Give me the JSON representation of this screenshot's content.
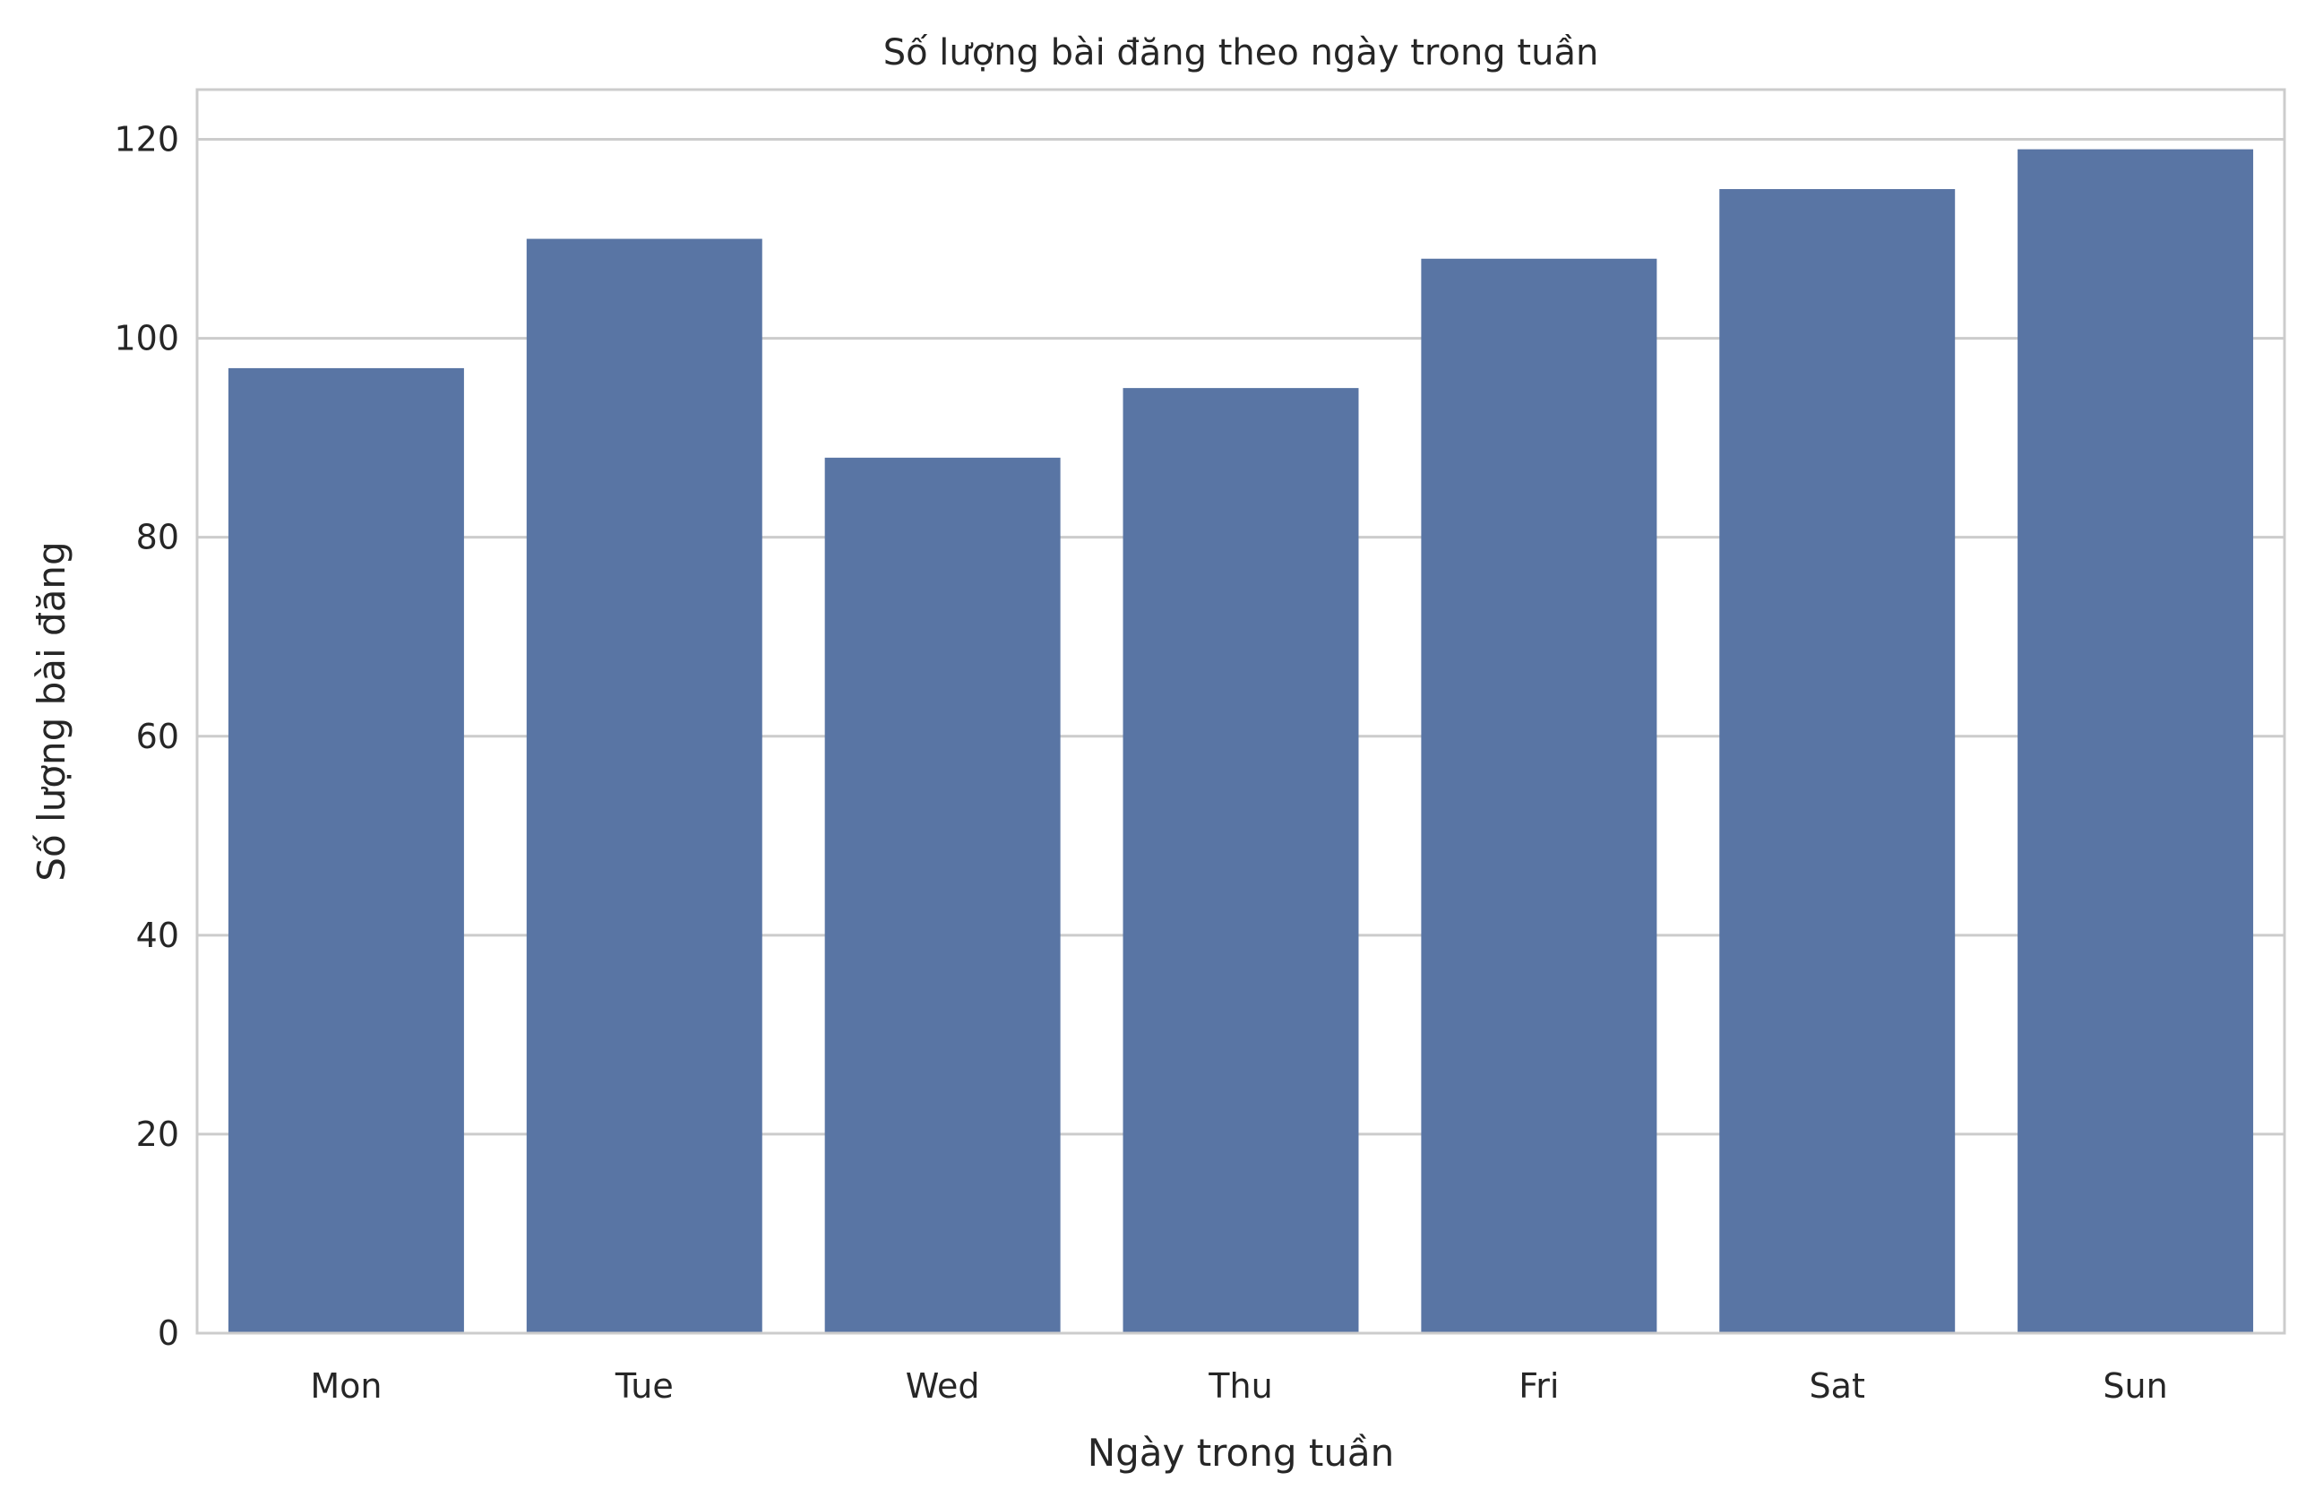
{
  "chart_data": {
    "type": "bar",
    "title": "Số lượng bài đăng theo ngày trong tuần",
    "xlabel": "Ngày trong tuần",
    "ylabel": "Số lượng bài đăng",
    "categories": [
      "Mon",
      "Tue",
      "Wed",
      "Thu",
      "Fri",
      "Sat",
      "Sun"
    ],
    "values": [
      97,
      110,
      88,
      95,
      108,
      115,
      119
    ],
    "ylim": [
      0,
      125
    ],
    "yticks": [
      0,
      20,
      40,
      60,
      80,
      100,
      120
    ],
    "grid": "horizontal",
    "bar_color": "#5975a4",
    "grid_color": "#cccccc"
  }
}
